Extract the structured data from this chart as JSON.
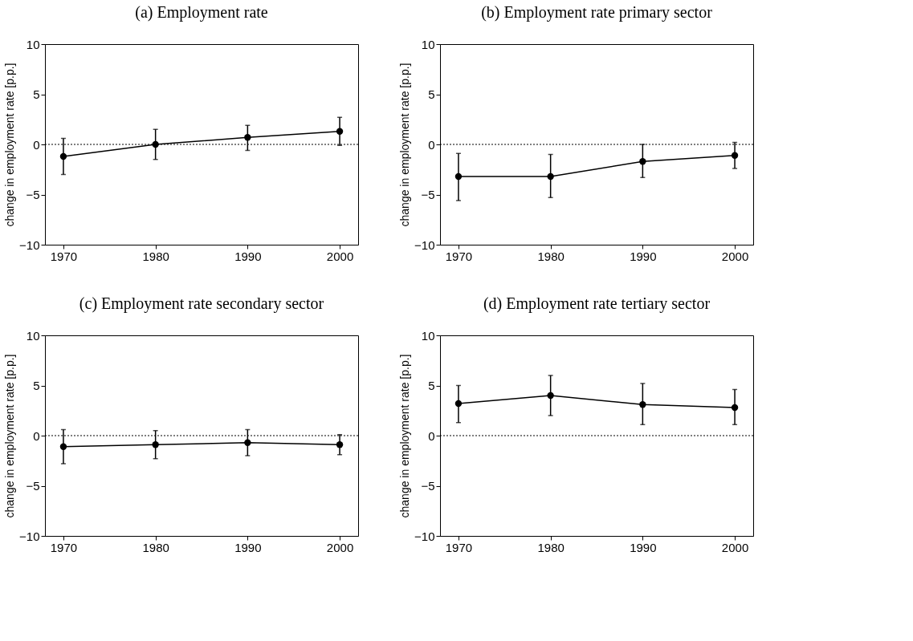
{
  "chart_data": [
    {
      "type": "line",
      "title": "(a) Employment rate",
      "ylabel": "change in employment rate [p.p.]",
      "x": [
        1970,
        1980,
        1990,
        2000
      ],
      "series": [
        {
          "color": "#000000",
          "values": [
            -1.2,
            0.0,
            0.7,
            1.3
          ],
          "errors": [
            [
              -3.0,
              0.6
            ],
            [
              -1.5,
              1.5
            ],
            [
              -0.6,
              1.9
            ],
            [
              -0.1,
              2.7
            ]
          ]
        }
      ],
      "marker": "circle",
      "line_style": "solid",
      "xlim": [
        1968,
        2002
      ],
      "xticks": [
        1970,
        1980,
        1990,
        2000
      ],
      "ylim": [
        -10,
        10
      ],
      "yticks": [
        -10,
        -5,
        0,
        5,
        10
      ],
      "grid": false,
      "ref_lines": [
        {
          "axis": "y",
          "value": 0,
          "line_style": "dotted",
          "color": "#000000"
        }
      ]
    },
    {
      "type": "line",
      "title": "(b) Employment rate primary sector",
      "ylabel": "change in employment rate [p.p.]",
      "x": [
        1970,
        1980,
        1990,
        2000
      ],
      "series": [
        {
          "color": "#000000",
          "values": [
            -3.2,
            -3.2,
            -1.7,
            -1.1
          ],
          "errors": [
            [
              -5.6,
              -0.9
            ],
            [
              -5.3,
              -1.0
            ],
            [
              -3.3,
              0.0
            ],
            [
              -2.4,
              0.2
            ]
          ]
        }
      ],
      "marker": "circle",
      "line_style": "solid",
      "xlim": [
        1968,
        2002
      ],
      "xticks": [
        1970,
        1980,
        1990,
        2000
      ],
      "ylim": [
        -10,
        10
      ],
      "yticks": [
        -10,
        -5,
        0,
        5,
        10
      ],
      "grid": false,
      "ref_lines": [
        {
          "axis": "y",
          "value": 0,
          "line_style": "dotted",
          "color": "#000000"
        }
      ]
    },
    {
      "type": "line",
      "title": "(c) Employment rate secondary sector",
      "ylabel": "change in employment rate [p.p.]",
      "x": [
        1970,
        1980,
        1990,
        2000
      ],
      "series": [
        {
          "color": "#000000",
          "values": [
            -1.1,
            -0.9,
            -0.7,
            -0.9
          ],
          "errors": [
            [
              -2.8,
              0.6
            ],
            [
              -2.3,
              0.5
            ],
            [
              -2.0,
              0.6
            ],
            [
              -1.9,
              0.1
            ]
          ]
        }
      ],
      "marker": "circle",
      "line_style": "solid",
      "xlim": [
        1968,
        2002
      ],
      "xticks": [
        1970,
        1980,
        1990,
        2000
      ],
      "ylim": [
        -10,
        10
      ],
      "yticks": [
        -10,
        -5,
        0,
        5,
        10
      ],
      "grid": false,
      "ref_lines": [
        {
          "axis": "y",
          "value": 0,
          "line_style": "dotted",
          "color": "#000000"
        }
      ]
    },
    {
      "type": "line",
      "title": "(d) Employment rate tertiary sector",
      "ylabel": "change in employment rate [p.p.]",
      "x": [
        1970,
        1980,
        1990,
        2000
      ],
      "series": [
        {
          "color": "#000000",
          "values": [
            3.2,
            4.0,
            3.1,
            2.8
          ],
          "errors": [
            [
              1.3,
              5.0
            ],
            [
              2.0,
              6.0
            ],
            [
              1.1,
              5.2
            ],
            [
              1.1,
              4.6
            ]
          ]
        }
      ],
      "marker": "circle",
      "line_style": "solid",
      "xlim": [
        1968,
        2002
      ],
      "xticks": [
        1970,
        1980,
        1990,
        2000
      ],
      "ylim": [
        -10,
        10
      ],
      "yticks": [
        -10,
        -5,
        0,
        5,
        10
      ],
      "grid": false,
      "ref_lines": [
        {
          "axis": "y",
          "value": 0,
          "line_style": "dotted",
          "color": "#000000"
        }
      ]
    }
  ]
}
